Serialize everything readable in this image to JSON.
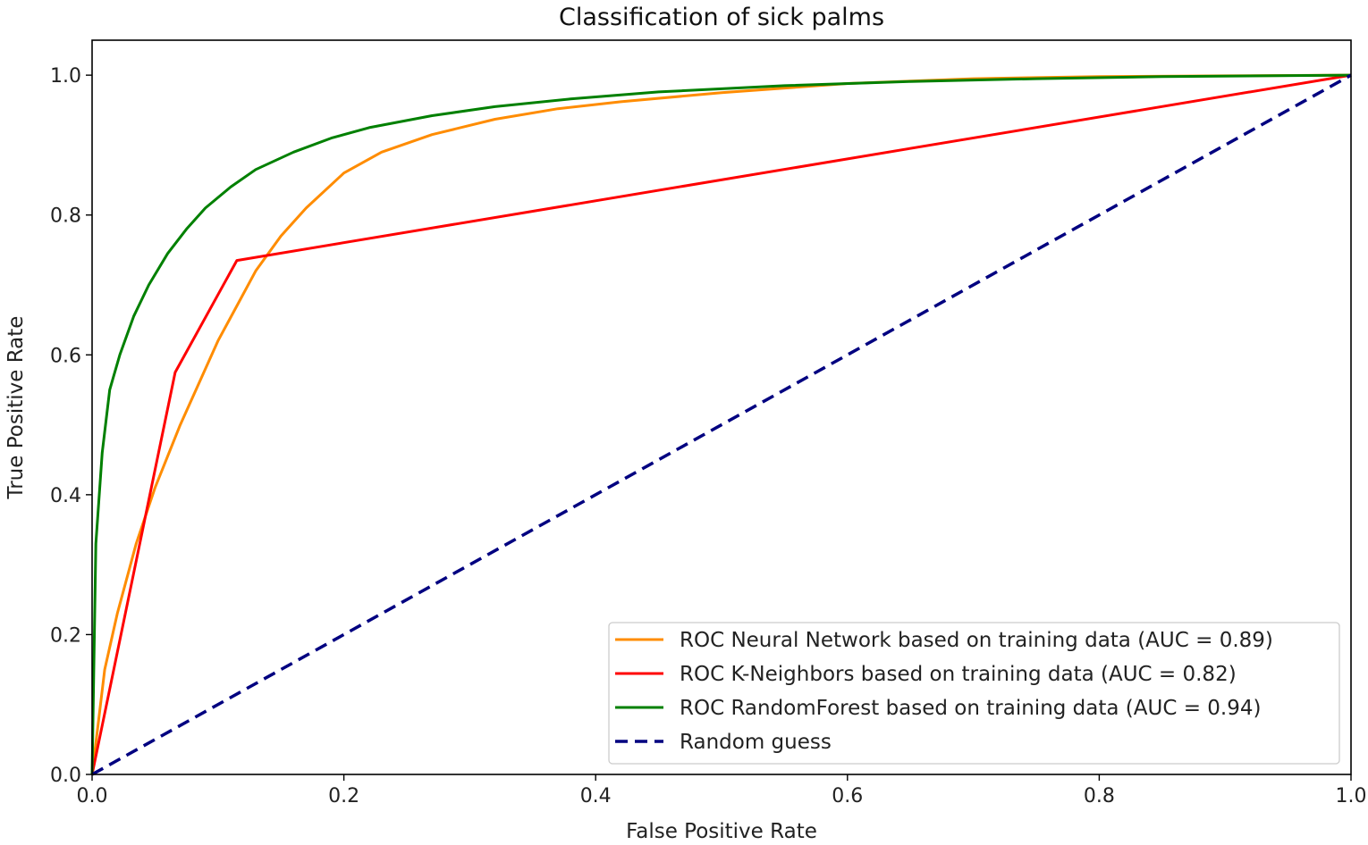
{
  "chart_data": {
    "type": "line",
    "title": "Classification of sick palms",
    "xlabel": "False Positive Rate",
    "ylabel": "True Positive Rate",
    "xlim": [
      0.0,
      1.0
    ],
    "ylim": [
      0.0,
      1.05
    ],
    "xticks": [
      0.0,
      0.2,
      0.4,
      0.6,
      0.8,
      1.0
    ],
    "xtick_labels": [
      "0.0",
      "0.2",
      "0.4",
      "0.6",
      "0.8",
      "1.0"
    ],
    "yticks": [
      0.0,
      0.2,
      0.4,
      0.6,
      0.8,
      1.0
    ],
    "ytick_labels": [
      "0.0",
      "0.2",
      "0.4",
      "0.6",
      "0.8",
      "1.0"
    ],
    "grid": false,
    "legend_position": "lower-right",
    "series": [
      {
        "name": "ROC Neural Network based on training data (AUC = 0.89)",
        "color": "#ff8c00",
        "dash": "solid",
        "x": [
          0.0,
          0.01,
          0.02,
          0.035,
          0.05,
          0.07,
          0.085,
          0.1,
          0.115,
          0.13,
          0.15,
          0.17,
          0.2,
          0.23,
          0.27,
          0.32,
          0.37,
          0.42,
          0.5,
          0.6,
          0.7,
          0.8,
          0.9,
          1.0
        ],
        "y": [
          0.0,
          0.15,
          0.23,
          0.33,
          0.41,
          0.5,
          0.56,
          0.62,
          0.67,
          0.72,
          0.77,
          0.81,
          0.86,
          0.89,
          0.915,
          0.937,
          0.952,
          0.962,
          0.975,
          0.988,
          0.995,
          0.998,
          0.999,
          1.0
        ]
      },
      {
        "name": "ROC K-Neighbors based on training data (AUC = 0.82)",
        "color": "#ff0000",
        "dash": "solid",
        "x": [
          0.0,
          0.066,
          0.115,
          1.0
        ],
        "y": [
          0.0,
          0.575,
          0.735,
          1.0
        ]
      },
      {
        "name": "ROC RandomForest based on training data (AUC = 0.94)",
        "color": "#008000",
        "dash": "solid",
        "x": [
          0.0,
          0.003,
          0.008,
          0.014,
          0.022,
          0.033,
          0.045,
          0.06,
          0.075,
          0.09,
          0.11,
          0.13,
          0.16,
          0.19,
          0.22,
          0.27,
          0.32,
          0.38,
          0.45,
          0.55,
          0.65,
          0.75,
          0.85,
          1.0
        ],
        "y": [
          0.0,
          0.33,
          0.46,
          0.55,
          0.6,
          0.655,
          0.7,
          0.745,
          0.78,
          0.81,
          0.84,
          0.865,
          0.89,
          0.91,
          0.925,
          0.942,
          0.955,
          0.966,
          0.976,
          0.985,
          0.991,
          0.995,
          0.998,
          1.0
        ]
      },
      {
        "name": "Random guess",
        "color": "#000080",
        "dash": "dashed",
        "x": [
          0.0,
          1.0
        ],
        "y": [
          0.0,
          1.0
        ]
      }
    ]
  }
}
